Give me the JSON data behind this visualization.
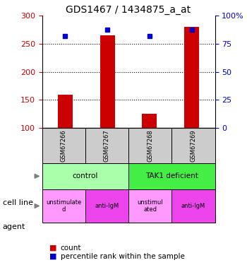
{
  "title": "GDS1467 / 1434875_a_at",
  "samples": [
    "GSM67266",
    "GSM67267",
    "GSM67268",
    "GSM67269"
  ],
  "counts": [
    160,
    265,
    125,
    280
  ],
  "percentile_ranks": [
    82,
    88,
    82,
    88
  ],
  "y_min": 100,
  "y_max": 300,
  "y_ticks_left": [
    100,
    150,
    200,
    250,
    300
  ],
  "y_ticks_right": [
    0,
    25,
    50,
    75,
    100
  ],
  "bar_color": "#cc0000",
  "dot_color": "#0000cc",
  "cell_line_labels": [
    "control",
    "TAK1 deficient"
  ],
  "cell_line_spans": [
    [
      0,
      2
    ],
    [
      2,
      4
    ]
  ],
  "cell_line_colors": [
    "#aaffaa",
    "#44ee44"
  ],
  "agent_labels": [
    "unstimulate\nd",
    "anti-IgM",
    "unstimul\nated",
    "anti-IgM"
  ],
  "agent_alt_colors": [
    "#ff99ff",
    "#ee44ee"
  ],
  "sample_box_color": "#cccccc",
  "legend_red_label": "count",
  "legend_blue_label": "percentile rank within the sample",
  "left_label_color": "#cc0000",
  "right_label_color": "#0000cc",
  "title_fontsize": 10,
  "tick_fontsize": 8,
  "table_fontsize": 7.5,
  "label_fontsize": 8
}
